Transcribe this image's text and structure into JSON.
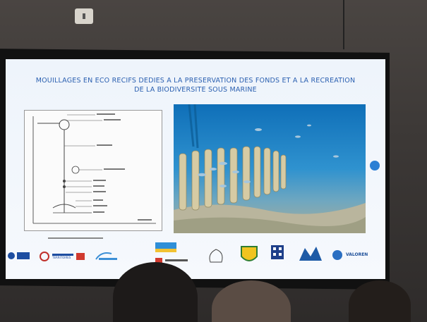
{
  "slide": {
    "title_line1": "MOUILLAGES EN ECO RECIFS DEDIES A LA PRESERVATION DES FONDS ET A LA RECREATION",
    "title_line2": "DE LA BIODIVERSITE SOUS MARINE"
  },
  "colors": {
    "title_blue": "#2a5fb0",
    "water_blue": "#1a7bc0",
    "reef_structure": "#d9cfa8"
  },
  "logos": {
    "partner_text_1": "TERRITOIRES",
    "partner_text_2": "VALOREN"
  }
}
